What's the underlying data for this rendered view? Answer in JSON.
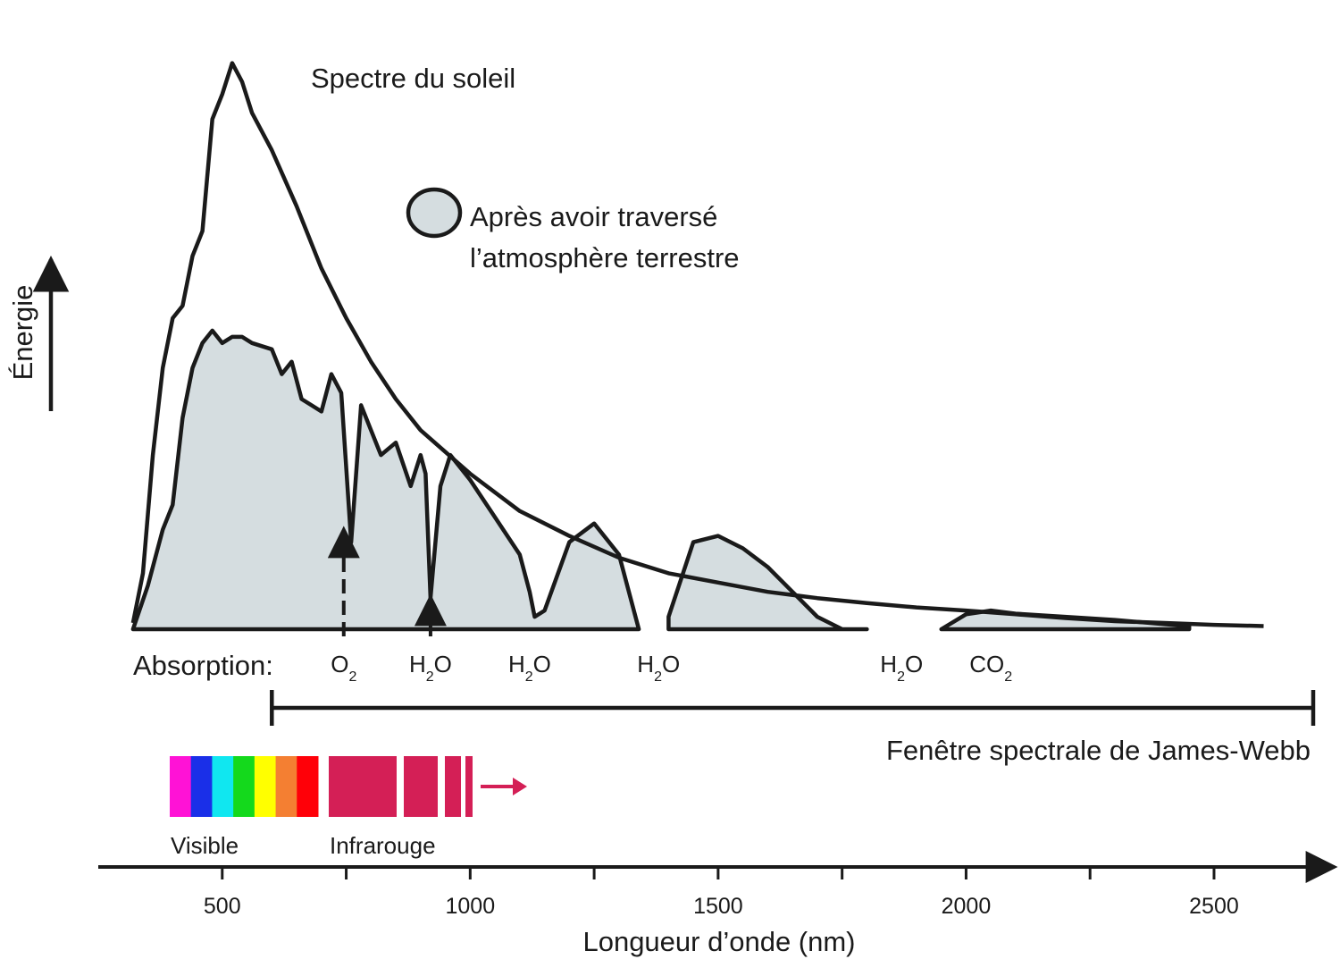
{
  "chart_data": {
    "type": "area",
    "title": "",
    "ylabel": "Énergie",
    "xlabel": "Longueur d’onde (nm)",
    "x_ticks": [
      500,
      1000,
      1500,
      2000,
      2500
    ],
    "xlim": [
      250,
      2700
    ],
    "ylim": [
      0,
      1
    ],
    "grid": false,
    "series": [
      {
        "name": "Spectre du soleil",
        "style": "line",
        "x": [
          320,
          340,
          360,
          380,
          400,
          420,
          440,
          460,
          480,
          500,
          520,
          540,
          560,
          600,
          650,
          700,
          750,
          800,
          850,
          900,
          1000,
          1100,
          1200,
          1300,
          1400,
          1500,
          1600,
          1700,
          1800,
          1900,
          2000,
          2100,
          2200,
          2300,
          2400,
          2500,
          2600
        ],
        "values": [
          0.01,
          0.09,
          0.28,
          0.42,
          0.5,
          0.52,
          0.6,
          0.64,
          0.82,
          0.86,
          0.91,
          0.88,
          0.83,
          0.77,
          0.68,
          0.58,
          0.5,
          0.43,
          0.37,
          0.32,
          0.25,
          0.19,
          0.15,
          0.115,
          0.09,
          0.075,
          0.06,
          0.05,
          0.042,
          0.035,
          0.03,
          0.024,
          0.018,
          0.013,
          0.01,
          0.007,
          0.005
        ]
      },
      {
        "name": "Après avoir traversé l’atmosphère terrestre",
        "style": "filled",
        "fill": "#d5dde0",
        "x": [
          320,
          350,
          380,
          400,
          420,
          440,
          460,
          480,
          500,
          520,
          540,
          560,
          600,
          620,
          640,
          660,
          680,
          700,
          720,
          740,
          760,
          780,
          800,
          820,
          850,
          880,
          900,
          910,
          920,
          940,
          960,
          1000,
          1050,
          1100,
          1120,
          1130,
          1150,
          1200,
          1250,
          1300,
          1340,
          1340,
          1400,
          1450,
          1500,
          1550,
          1600,
          1650,
          1700,
          1750,
          1800,
          1800,
          1950,
          2000,
          2050,
          2100,
          2200,
          2300,
          2400,
          2450,
          2450
        ],
        "values": [
          0.0,
          0.07,
          0.16,
          0.2,
          0.34,
          0.42,
          0.46,
          0.48,
          0.46,
          0.47,
          0.47,
          0.46,
          0.45,
          0.41,
          0.43,
          0.37,
          0.36,
          0.35,
          0.41,
          0.38,
          0.14,
          0.36,
          0.32,
          0.28,
          0.3,
          0.23,
          0.28,
          0.25,
          0.05,
          0.23,
          0.28,
          0.24,
          0.18,
          0.12,
          0.06,
          0.02,
          0.03,
          0.14,
          0.17,
          0.12,
          0.0,
          0.0,
          0.02,
          0.14,
          0.15,
          0.13,
          0.1,
          0.06,
          0.02,
          0.0,
          0.0,
          0.0,
          0.0,
          0.024,
          0.03,
          0.025,
          0.02,
          0.015,
          0.008,
          0.005,
          0.0
        ]
      }
    ],
    "annotations": {
      "absorption_label": "Absorption:",
      "absorbers": [
        {
          "x": 745,
          "base": "O",
          "sub": "2",
          "arrow": "dashed"
        },
        {
          "x": 920,
          "base": "H",
          "sub": "2",
          "tail": "O",
          "arrow": "solid"
        },
        {
          "x": 1120,
          "base": "H",
          "sub": "2",
          "tail": "O"
        },
        {
          "x": 1380,
          "base": "H",
          "sub": "2",
          "tail": "O"
        },
        {
          "x": 1870,
          "base": "H",
          "sub": "2",
          "tail": "O"
        },
        {
          "x": 2050,
          "base": "CO",
          "sub": "2"
        }
      ],
      "jwst_window": {
        "label": "Fenêtre spectrale de James-Webb",
        "from": 600,
        "to": 2700
      },
      "bands": {
        "visible_label": "Visible",
        "infrared_label": "Infrarouge",
        "visible_colors": [
          "#ff12d6",
          "#1a2fe8",
          "#10e7f0",
          "#14d91c",
          "#ffff00",
          "#f47f32",
          "#ff0008"
        ],
        "infrared_color": "#d41f56"
      }
    }
  }
}
